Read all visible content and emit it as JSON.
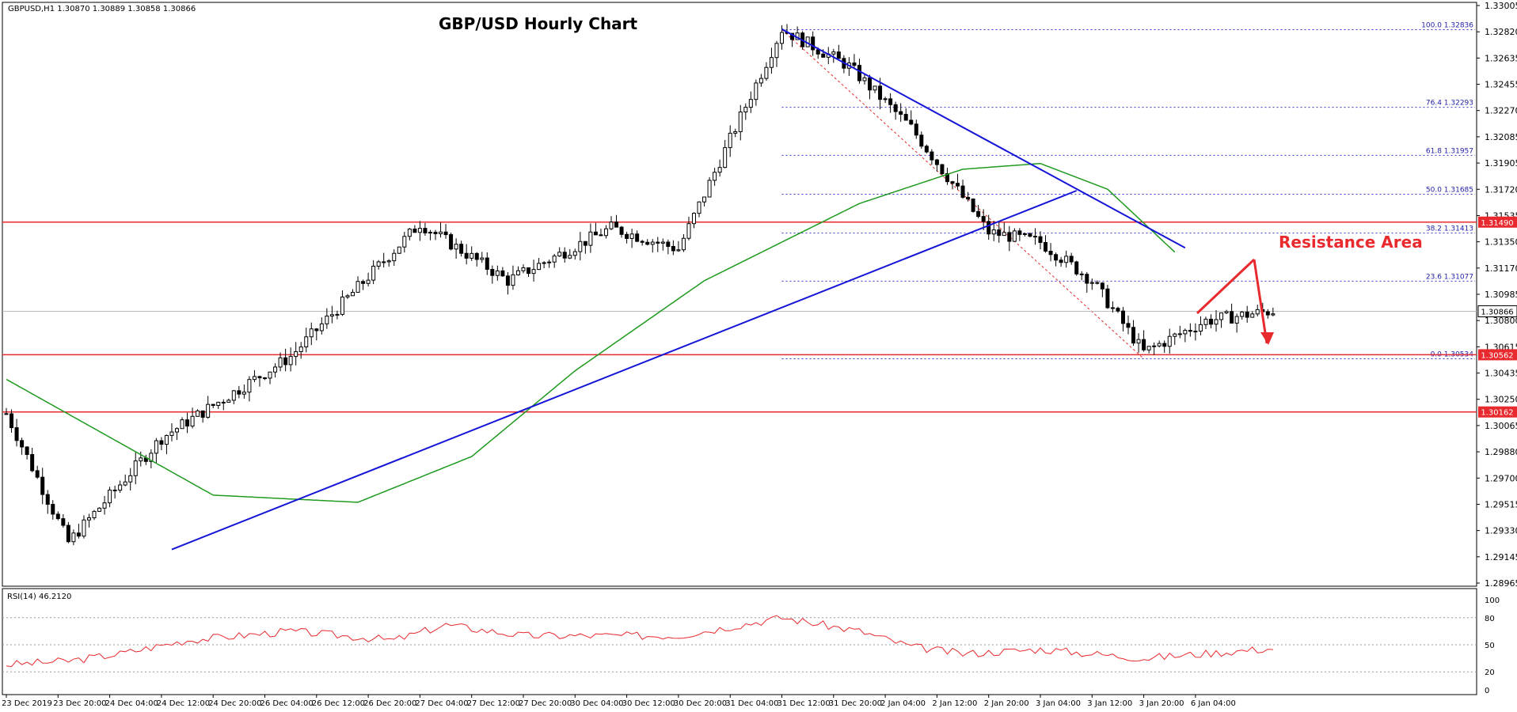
{
  "chart_data": {
    "type": "candlestick",
    "title": "GBP/USD Hourly Chart",
    "symbol_header": "GBPUSD,H1  1.30870 1.30889 1.30858 1.30866",
    "ylim": [
      1.28965,
      1.33005
    ],
    "price_ticks": [
      "1.33005",
      "1.32820",
      "1.32635",
      "1.32455",
      "1.32270",
      "1.32085",
      "1.31905",
      "1.31720",
      "1.31535",
      "1.31350",
      "1.31170",
      "1.30985",
      "1.30800",
      "1.30615",
      "1.30435",
      "1.30250",
      "1.30065",
      "1.29880",
      "1.29700",
      "1.29515",
      "1.29330",
      "1.29145",
      "1.28965"
    ],
    "time_labels": [
      "23 Dec 2019",
      "23 Dec 20:00",
      "24 Dec 04:00",
      "24 Dec 12:00",
      "24 Dec 20:00",
      "26 Dec 04:00",
      "26 Dec 12:00",
      "26 Dec 20:00",
      "27 Dec 04:00",
      "27 Dec 12:00",
      "27 Dec 20:00",
      "30 Dec 04:00",
      "30 Dec 12:00",
      "30 Dec 20:00",
      "31 Dec 04:00",
      "31 Dec 12:00",
      "31 Dec 20:00",
      "2 Jan 04:00",
      "2 Jan 12:00",
      "2 Jan 20:00",
      "3 Jan 04:00",
      "3 Jan 12:00",
      "3 Jan 20:00",
      "6 Jan 04:00"
    ],
    "key_points": [
      {
        "t": 0,
        "price": 1.3015
      },
      {
        "t": 12,
        "price": 1.2925
      },
      {
        "t": 30,
        "price": 1.2998
      },
      {
        "t": 55,
        "price": 1.3055
      },
      {
        "t": 80,
        "price": 1.3148
      },
      {
        "t": 97,
        "price": 1.3108
      },
      {
        "t": 117,
        "price": 1.3145
      },
      {
        "t": 130,
        "price": 1.313
      },
      {
        "t": 150,
        "price": 1.3284
      },
      {
        "t": 163,
        "price": 1.3258
      },
      {
        "t": 175,
        "price": 1.3215
      },
      {
        "t": 190,
        "price": 1.3142
      },
      {
        "t": 200,
        "price": 1.3135
      },
      {
        "t": 210,
        "price": 1.3108
      },
      {
        "t": 220,
        "price": 1.3058
      },
      {
        "t": 232,
        "price": 1.308
      },
      {
        "t": 245,
        "price": 1.3087
      }
    ],
    "ma_points": [
      {
        "t": 0,
        "price": 1.3039
      },
      {
        "t": 40,
        "price": 1.2958
      },
      {
        "t": 68,
        "price": 1.2953
      },
      {
        "t": 90,
        "price": 1.2985
      },
      {
        "t": 110,
        "price": 1.3045
      },
      {
        "t": 135,
        "price": 1.3108
      },
      {
        "t": 165,
        "price": 1.3162
      },
      {
        "t": 185,
        "price": 1.3186
      },
      {
        "t": 200,
        "price": 1.319
      },
      {
        "t": 213,
        "price": 1.3172
      },
      {
        "t": 226,
        "price": 1.3128
      }
    ],
    "current_price": "1.30866",
    "horizontal_levels": [
      {
        "price": 1.3149,
        "label": "1.31490"
      },
      {
        "price": 1.30562,
        "label": "1.30562"
      },
      {
        "price": 1.30162,
        "label": "1.30162"
      }
    ],
    "fibonacci": [
      {
        "price": 1.32836,
        "label": "100.0 1.32836"
      },
      {
        "price": 1.32293,
        "label": "76.4 1.32293"
      },
      {
        "price": 1.31957,
        "label": "61.8 1.31957"
      },
      {
        "price": 1.31685,
        "label": "50.0 1.31685"
      },
      {
        "price": 1.31413,
        "label": "38.2 1.31413"
      },
      {
        "price": 1.31077,
        "label": "23.6 1.31077"
      },
      {
        "price": 1.30534,
        "label": "0.0 1.30534"
      }
    ],
    "trendlines": [
      {
        "from": {
          "t": 32,
          "price": 1.292
        },
        "to": {
          "t": 207,
          "price": 1.3171
        },
        "color": "#1515d8"
      },
      {
        "from": {
          "t": 150,
          "price": 1.3284
        },
        "to": {
          "t": 228,
          "price": 1.3131
        },
        "color": "#1515d8"
      }
    ],
    "annotation": {
      "text": "Resistance Area",
      "color": "#e8292d"
    },
    "rsi": {
      "label": "RSI(14) 46.2120",
      "ticks": [
        "100",
        "80",
        "50",
        "20",
        "0"
      ],
      "levels": [
        80,
        50,
        20
      ],
      "key_points": [
        {
          "t": 0,
          "v": 28
        },
        {
          "t": 12,
          "v": 32
        },
        {
          "t": 22,
          "v": 40
        },
        {
          "t": 35,
          "v": 55
        },
        {
          "t": 55,
          "v": 65
        },
        {
          "t": 75,
          "v": 55
        },
        {
          "t": 85,
          "v": 72
        },
        {
          "t": 100,
          "v": 60
        },
        {
          "t": 130,
          "v": 60
        },
        {
          "t": 150,
          "v": 80
        },
        {
          "t": 165,
          "v": 65
        },
        {
          "t": 175,
          "v": 48
        },
        {
          "t": 185,
          "v": 40
        },
        {
          "t": 200,
          "v": 45
        },
        {
          "t": 220,
          "v": 35
        },
        {
          "t": 245,
          "v": 46
        }
      ]
    }
  }
}
